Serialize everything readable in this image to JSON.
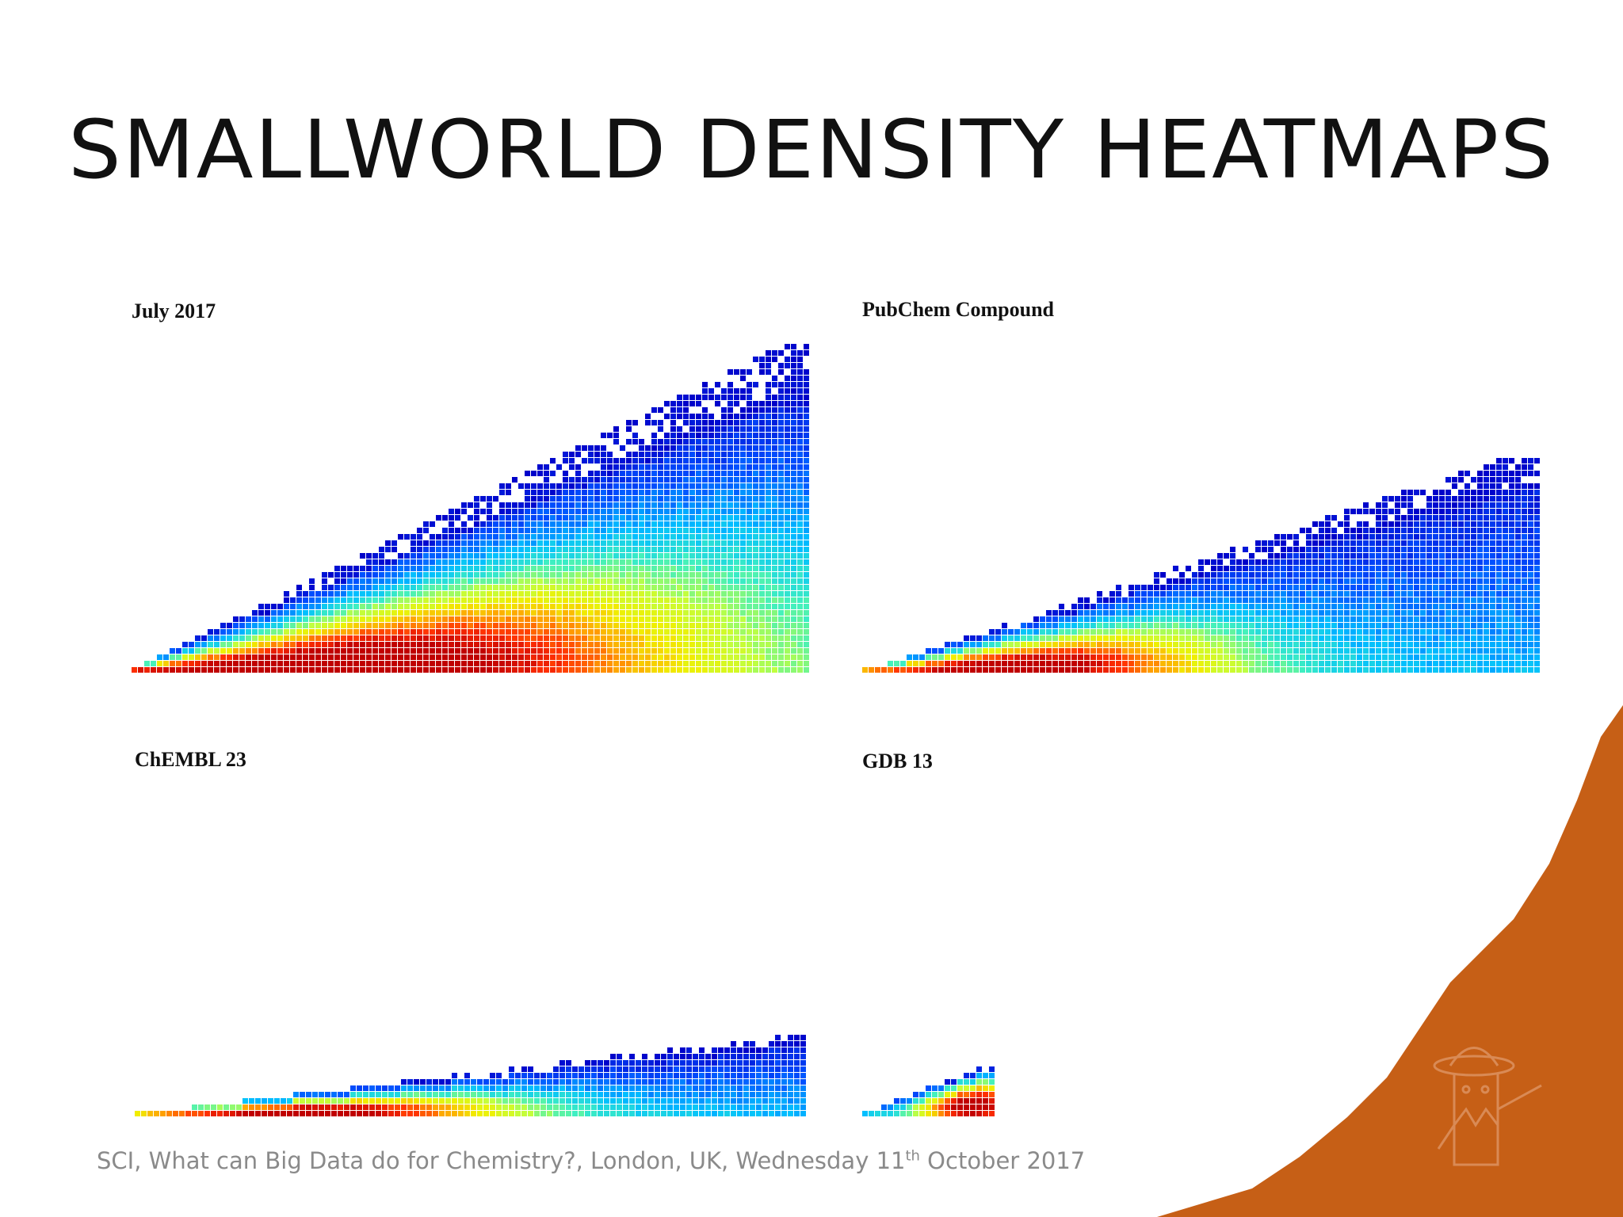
{
  "slide": {
    "title": "SMALLWORLD DENSITY HEATMAPS",
    "footer_prefix": "SCI, What can Big Data do for Chemistry?, London, UK, Wednesday 11",
    "footer_sup": "th",
    "footer_suffix": " October 2017"
  },
  "colors": {
    "accent_shape": "#c65f16",
    "footer_text": "#8a8a8a",
    "colormap": [
      "#0000c8",
      "#0050ff",
      "#00bfff",
      "#40f0c0",
      "#c0ff40",
      "#f0f000",
      "#ffa000",
      "#ff3000",
      "#c00000"
    ]
  },
  "chart_data": [
    {
      "type": "heatmap",
      "title": "July 2017",
      "shape": "wedge",
      "slope": 0.5,
      "peak_col": 0.3,
      "peak_row": 0.05,
      "max_level": 0.9,
      "spread": 0.55
    },
    {
      "type": "heatmap",
      "title": "PubChem Compound",
      "shape": "wedge",
      "slope": 0.33,
      "peak_col": 0.22,
      "peak_row": 0.08,
      "max_level": 0.85,
      "spread": 0.3
    },
    {
      "type": "heatmap",
      "title": "ChEMBL 23",
      "shape": "wedge",
      "slope": 0.12,
      "peak_col": 0.25,
      "peak_row": 0.1,
      "max_level": 0.85,
      "spread": 0.3
    },
    {
      "type": "heatmap",
      "title": "GDB 13",
      "shape": "wedge",
      "slope": 0.4,
      "peak_col": 0.8,
      "peak_row": 0.2,
      "max_level": 0.9,
      "spread": 0.4
    }
  ]
}
